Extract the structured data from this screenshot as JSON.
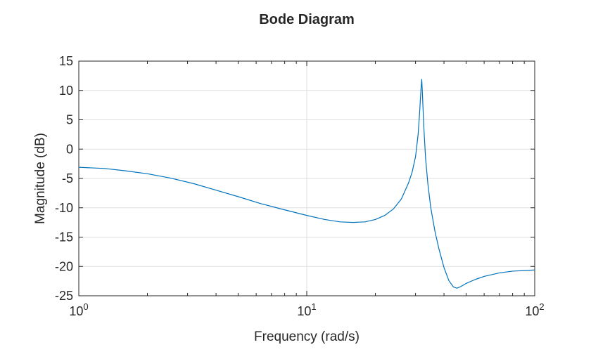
{
  "chart_data": {
    "type": "line",
    "title": "Bode Diagram",
    "xlabel": "Frequency (rad/s)",
    "ylabel": "Magnitude (dB)",
    "xscale": "log",
    "xlim": [
      1,
      100
    ],
    "ylim": [
      -25,
      15
    ],
    "grid": true,
    "x_ticks": [
      {
        "value": 1,
        "base": "10",
        "exp": "0"
      },
      {
        "value": 10,
        "base": "10",
        "exp": "1"
      },
      {
        "value": 100,
        "base": "10",
        "exp": "2"
      }
    ],
    "y_ticks": [
      15,
      10,
      5,
      0,
      -5,
      -10,
      -15,
      -20,
      -25
    ],
    "y_tick_labels": [
      "15",
      "10",
      "5",
      "0",
      "-5",
      "-10",
      "-15",
      "-20",
      "-25"
    ],
    "series": [
      {
        "color": "#0072bd",
        "points": [
          [
            1.0,
            -3.1
          ],
          [
            1.3,
            -3.3
          ],
          [
            1.6,
            -3.7
          ],
          [
            2.0,
            -4.2
          ],
          [
            2.5,
            -4.9
          ],
          [
            3.2,
            -5.9
          ],
          [
            4.0,
            -7.0
          ],
          [
            5.0,
            -8.1
          ],
          [
            6.3,
            -9.3
          ],
          [
            7.9,
            -10.3
          ],
          [
            10.0,
            -11.3
          ],
          [
            12.0,
            -12.0
          ],
          [
            14.0,
            -12.4
          ],
          [
            16.0,
            -12.5
          ],
          [
            18.0,
            -12.4
          ],
          [
            20.0,
            -12.0
          ],
          [
            22.0,
            -11.3
          ],
          [
            24.0,
            -10.2
          ],
          [
            26.0,
            -8.5
          ],
          [
            28.0,
            -5.7
          ],
          [
            29.0,
            -3.9
          ],
          [
            30.0,
            -1.3
          ],
          [
            30.8,
            2.5
          ],
          [
            31.3,
            6.5
          ],
          [
            31.7,
            10.2
          ],
          [
            31.95,
            11.9
          ],
          [
            32.2,
            9.0
          ],
          [
            32.6,
            4.0
          ],
          [
            33.2,
            -1.5
          ],
          [
            34.0,
            -6.0
          ],
          [
            35.0,
            -10.0
          ],
          [
            36.5,
            -14.0
          ],
          [
            38.0,
            -17.0
          ],
          [
            40.0,
            -20.2
          ],
          [
            42.0,
            -22.4
          ],
          [
            44.0,
            -23.5
          ],
          [
            45.5,
            -23.7
          ],
          [
            47.0,
            -23.5
          ],
          [
            50.0,
            -22.9
          ],
          [
            55.0,
            -22.2
          ],
          [
            60.0,
            -21.7
          ],
          [
            70.0,
            -21.1
          ],
          [
            80.0,
            -20.8
          ],
          [
            90.0,
            -20.7
          ],
          [
            100.0,
            -20.6
          ]
        ]
      }
    ]
  }
}
